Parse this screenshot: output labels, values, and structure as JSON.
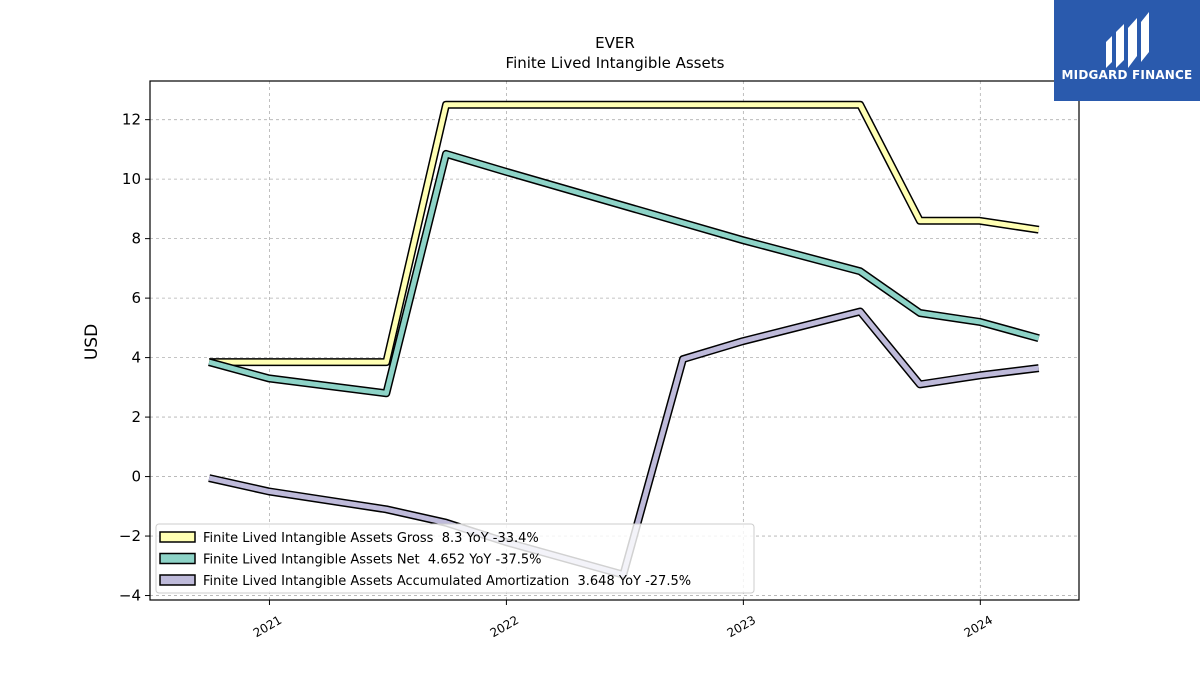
{
  "chart_data": {
    "type": "line",
    "title": "EVER",
    "subtitle": "Finite Lived Intangible Assets",
    "ylabel": "USD",
    "xlabel": "",
    "xlim": [
      "2020-07-01",
      "2024-06-01"
    ],
    "ylim": [
      -4.15,
      13.3
    ],
    "y_ticks": [
      -4,
      -2,
      0,
      2,
      4,
      6,
      8,
      10,
      12
    ],
    "x_ticks": [
      {
        "date": "2021-01-01",
        "label": "2021"
      },
      {
        "date": "2022-01-01",
        "label": "2022"
      },
      {
        "date": "2023-01-01",
        "label": "2023"
      },
      {
        "date": "2024-01-01",
        "label": "2024"
      }
    ],
    "grid": true,
    "legend_position": "bottom-left",
    "series": [
      {
        "name": "Finite Lived Intangible Assets Gross",
        "legend_label": "Finite Lived Intangible Assets Gross  8.3 YoY -33.4%",
        "color": "#ffffb3",
        "points": [
          {
            "x": "2020-09-30",
            "y": 3.85
          },
          {
            "x": "2021-06-30",
            "y": 3.85
          },
          {
            "x": "2021-09-30",
            "y": 12.5
          },
          {
            "x": "2023-06-30",
            "y": 12.5
          },
          {
            "x": "2023-09-30",
            "y": 8.6
          },
          {
            "x": "2023-12-31",
            "y": 8.6
          },
          {
            "x": "2024-03-31",
            "y": 8.3
          }
        ]
      },
      {
        "name": "Finite Lived Intangible Assets Net",
        "legend_label": "Finite Lived Intangible Assets Net  4.652 YoY -37.5%",
        "color": "#8dd3c7",
        "points": [
          {
            "x": "2020-09-30",
            "y": 3.85
          },
          {
            "x": "2020-12-31",
            "y": 3.3
          },
          {
            "x": "2021-06-30",
            "y": 2.8
          },
          {
            "x": "2021-09-30",
            "y": 10.85
          },
          {
            "x": "2021-12-31",
            "y": 10.25
          },
          {
            "x": "2022-12-31",
            "y": 7.95
          },
          {
            "x": "2023-06-30",
            "y": 6.9
          },
          {
            "x": "2023-09-30",
            "y": 5.5
          },
          {
            "x": "2023-12-31",
            "y": 5.2
          },
          {
            "x": "2024-03-31",
            "y": 4.652
          }
        ]
      },
      {
        "name": "Finite Lived Intangible Assets Accumulated Amortization",
        "legend_label": "Finite Lived Intangible Assets Accumulated Amortization  3.648 YoY -27.5%",
        "color": "#bebada",
        "points": [
          {
            "x": "2020-09-30",
            "y": -0.05
          },
          {
            "x": "2020-12-31",
            "y": -0.5
          },
          {
            "x": "2021-06-30",
            "y": -1.1
          },
          {
            "x": "2021-09-30",
            "y": -1.55
          },
          {
            "x": "2021-12-31",
            "y": -2.2
          },
          {
            "x": "2022-06-30",
            "y": -3.3
          },
          {
            "x": "2022-09-30",
            "y": 3.95
          },
          {
            "x": "2022-12-31",
            "y": 4.55
          },
          {
            "x": "2023-06-30",
            "y": 5.55
          },
          {
            "x": "2023-09-30",
            "y": 3.1
          },
          {
            "x": "2023-12-31",
            "y": 3.4
          },
          {
            "x": "2024-03-31",
            "y": 3.648
          }
        ]
      }
    ]
  },
  "logo": {
    "text": "MIDGARD FINANCE",
    "color": "#2a5aad"
  }
}
